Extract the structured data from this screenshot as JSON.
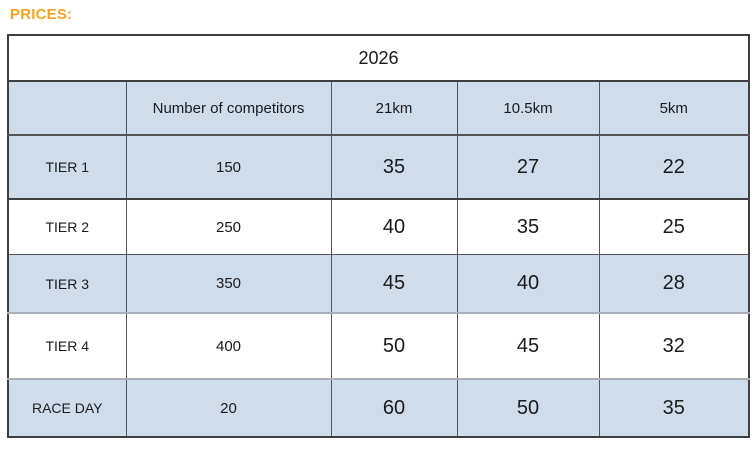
{
  "page": {
    "title_label": "PRICES:"
  },
  "table": {
    "year_header": "2026",
    "headers": {
      "row_label": "",
      "competitors": "Number of competitors",
      "km21": "21km",
      "km105": "10.5km",
      "km5": "5km"
    },
    "rows": [
      {
        "label": "TIER 1",
        "competitors": "150",
        "km21": "35",
        "km105": "27",
        "km5": "22"
      },
      {
        "label": "TIER 2",
        "competitors": "250",
        "km21": "40",
        "km105": "35",
        "km5": "25"
      },
      {
        "label": "TIER 3",
        "competitors": "350",
        "km21": "45",
        "km105": "40",
        "km5": "28"
      },
      {
        "label": "TIER 4",
        "competitors": "400",
        "km21": "50",
        "km105": "45",
        "km5": "32"
      },
      {
        "label": "RACE DAY",
        "competitors": "20",
        "km21": "60",
        "km105": "50",
        "km5": "35"
      }
    ]
  },
  "colors": {
    "accent_orange": "#FAA21B",
    "row_shade_blue": "#CFDCEC",
    "border_dark": "#3f3f3f",
    "border_mid": "#555555",
    "border_gray": "#a9afb8"
  }
}
